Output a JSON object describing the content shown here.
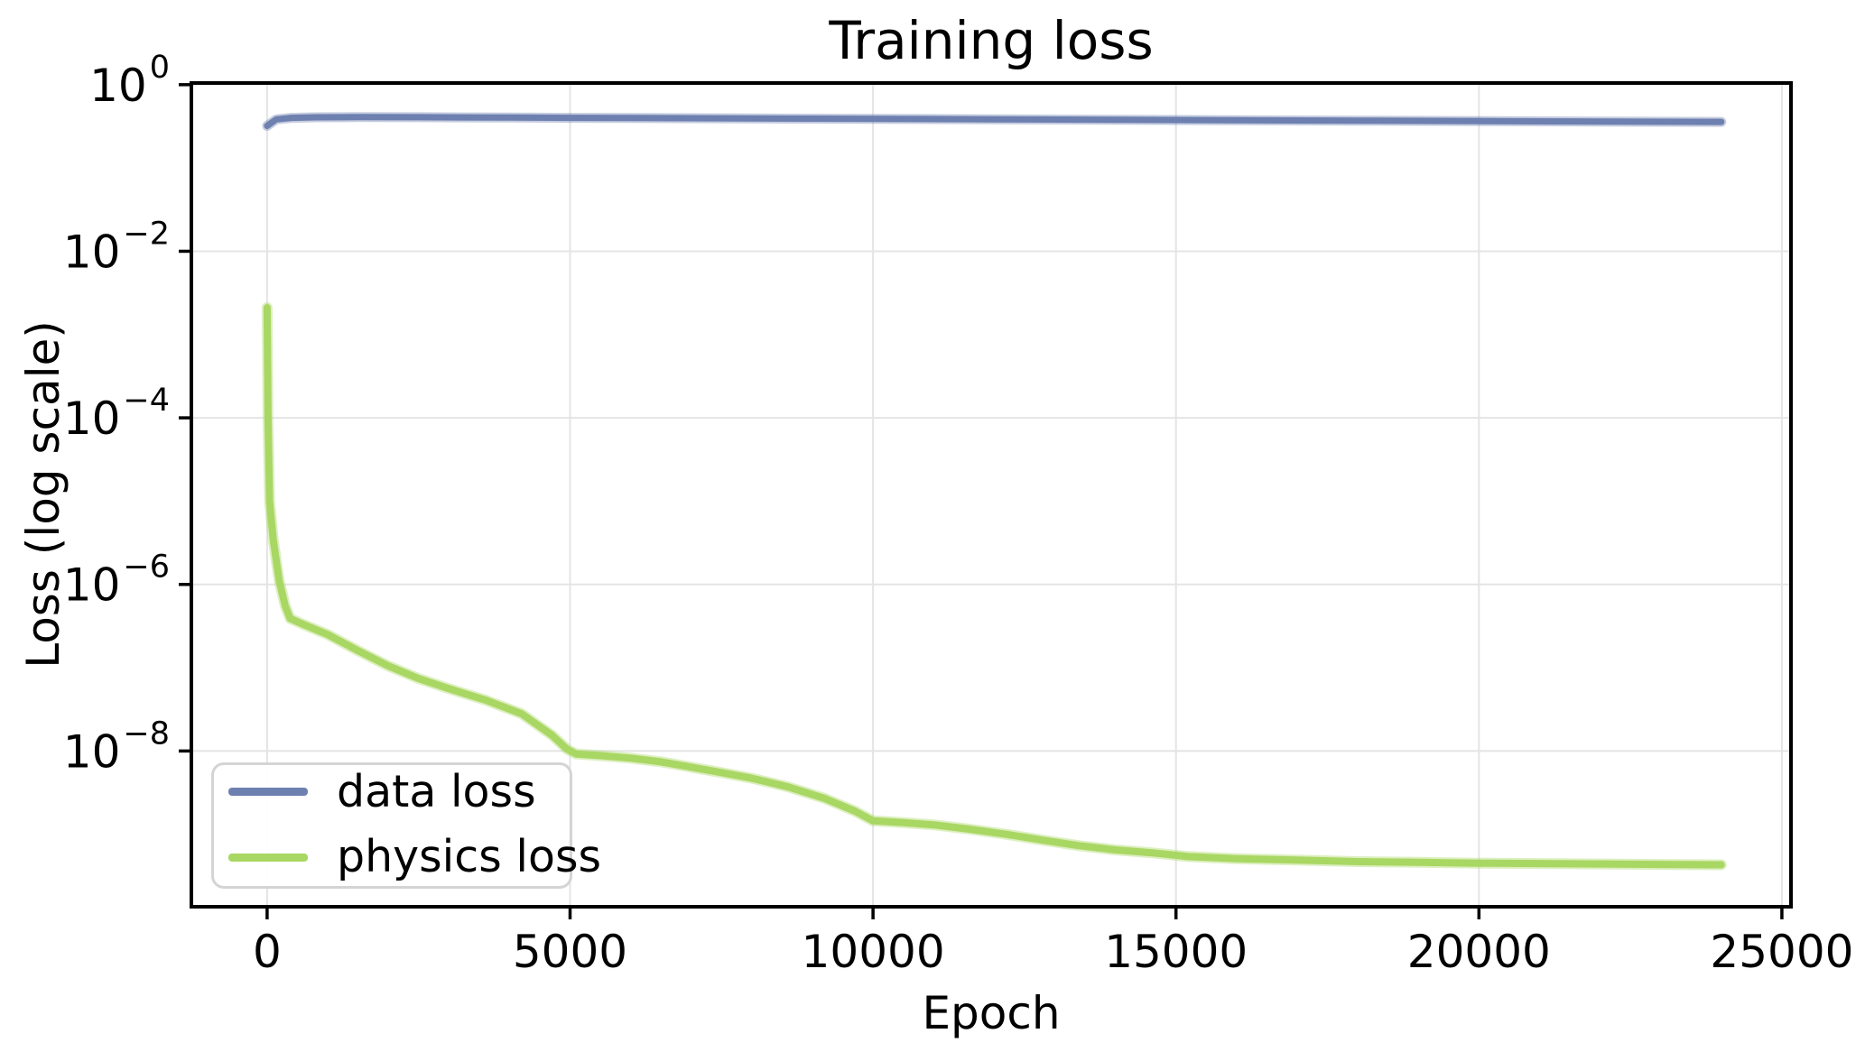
{
  "chart_data": {
    "type": "line",
    "title": "Training loss",
    "xlabel": "Epoch",
    "ylabel": "Loss (log scale)",
    "x_scale": "linear",
    "y_scale": "log",
    "grid": true,
    "legend_position": "lower left",
    "xlim": [
      -1250,
      25150
    ],
    "ylim_log10": [
      -9.87,
      0.02
    ],
    "x_ticks": [
      0,
      5000,
      10000,
      15000,
      20000,
      25000
    ],
    "y_tick_exponents": [
      0,
      -2,
      -4,
      -6,
      -8
    ],
    "colors": {
      "grid": "#e4e4e4",
      "spine": "#000000",
      "tick": "#000000",
      "data_loss": "#6d80b0",
      "physics_loss": "#a9d763"
    },
    "series": [
      {
        "name": "data loss",
        "color": "#6d80b0",
        "width": 7,
        "x": [
          0,
          150,
          400,
          800,
          1500,
          2500,
          4000,
          6000,
          9000,
          12000,
          15000,
          18000,
          21000,
          24000
        ],
        "y": [
          0.32,
          0.383,
          0.4,
          0.406,
          0.408,
          0.407,
          0.403,
          0.398,
          0.391,
          0.384,
          0.377,
          0.37,
          0.363,
          0.357
        ]
      },
      {
        "name": "physics loss",
        "color": "#a9d763",
        "width": 8,
        "x": [
          0,
          15,
          40,
          100,
          200,
          300,
          380,
          600,
          1000,
          1500,
          2000,
          2500,
          3000,
          3600,
          4200,
          4700,
          4950,
          5100,
          5500,
          6000,
          6500,
          7000,
          7500,
          8000,
          8600,
          9200,
          9700,
          10000,
          10500,
          11000,
          11600,
          12200,
          12800,
          13400,
          14000,
          14600,
          15200,
          16000,
          17000,
          18000,
          19000,
          20000,
          21000,
          22000,
          23000,
          24000
        ],
        "y": [
          0.0021,
          0.0001,
          1e-05,
          3.5e-06,
          1.1e-06,
          5.5e-07,
          3.9e-07,
          3.3e-07,
          2.5e-07,
          1.6e-07,
          1.05e-07,
          7.4e-08,
          5.6e-08,
          4.1e-08,
          2.8e-08,
          1.55e-08,
          1.05e-08,
          9.2e-09,
          8.8e-09,
          8.2e-09,
          7.4e-09,
          6.4e-09,
          5.5e-09,
          4.7e-09,
          3.7e-09,
          2.7e-09,
          1.9e-09,
          1.45e-09,
          1.38e-09,
          1.3e-09,
          1.15e-09,
          1e-09,
          8.5e-10,
          7.3e-10,
          6.5e-10,
          6e-10,
          5.4e-10,
          5.1e-10,
          4.9e-10,
          4.7e-10,
          4.6e-10,
          4.5e-10,
          4.45e-10,
          4.4e-10,
          4.35e-10,
          4.3e-10
        ]
      }
    ]
  },
  "legend": {
    "items": [
      {
        "label": "data loss"
      },
      {
        "label": "physics loss"
      }
    ]
  }
}
